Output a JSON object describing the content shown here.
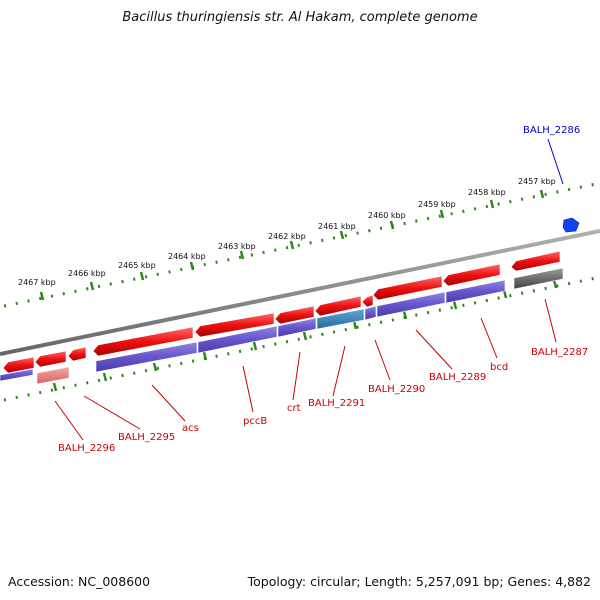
{
  "title": "Bacillus thuringiensis str. Al Hakam, complete genome",
  "accession": "Accession: NC_008600",
  "summary": "Topology: circular; Length: 5,257,091 bp; Genes: 4,882",
  "scale_labels": [
    "2457 kbp",
    "2458 kbp",
    "2459 kbp",
    "2460 kbp",
    "2461 kbp",
    "2462 kbp",
    "2463 kbp",
    "2464 kbp",
    "2465 kbp",
    "2466 kbp",
    "2467 kbp"
  ],
  "gene_labels": [
    "BALH_2286",
    "BALH_2287",
    "bcd",
    "BALH_2289",
    "BALH_2290",
    "BALH_2291",
    "crt",
    "pccB",
    "acs",
    "BALH_2295",
    "BALH_2296"
  ],
  "colors": {
    "forward_gene": "#ee1111",
    "reverse_gene": "#dd1111",
    "cds": "#6655cc",
    "highlight_cds": "#3a80b8",
    "pseudo": "#e88080",
    "gray_gene": "#666666",
    "selected_gene": "#1144ee",
    "tick": "#2d8a1a",
    "backbone": "#888888",
    "label_red": "#cc0000",
    "label_blue": "#0000cc"
  }
}
